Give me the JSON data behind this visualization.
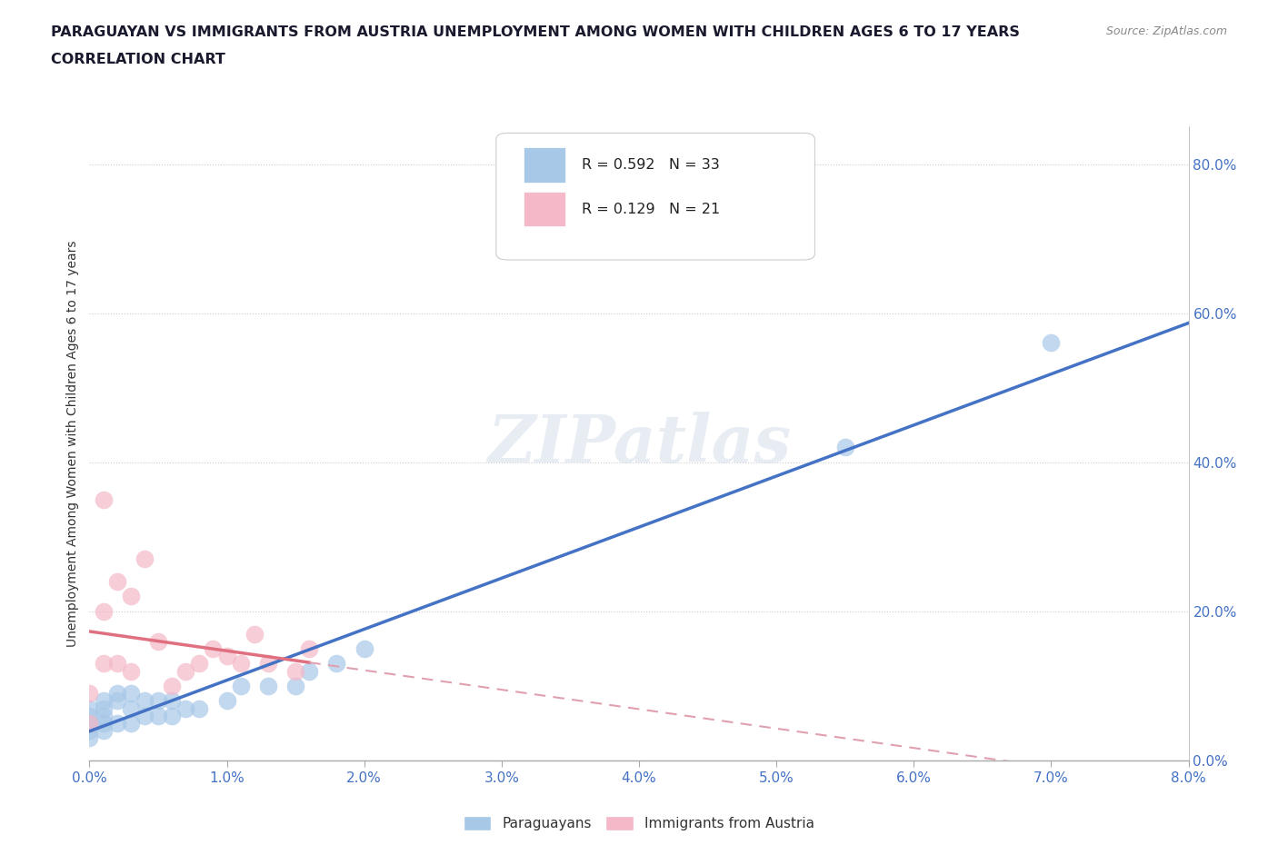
{
  "title_line1": "PARAGUAYAN VS IMMIGRANTS FROM AUSTRIA UNEMPLOYMENT AMONG WOMEN WITH CHILDREN AGES 6 TO 17 YEARS",
  "title_line2": "CORRELATION CHART",
  "source": "Source: ZipAtlas.com",
  "ylabel_label": "Unemployment Among Women with Children Ages 6 to 17 years",
  "xlim": [
    0.0,
    0.08
  ],
  "ylim": [
    0.0,
    0.85
  ],
  "paraguayan_R": 0.592,
  "paraguayan_N": 33,
  "austria_R": 0.129,
  "austria_N": 21,
  "paraguayan_color": "#a8c8e8",
  "austria_color": "#f4b8c8",
  "paraguayan_line_color": "#4472C4",
  "austria_line_solid_color": "#e07080",
  "austria_line_dash_color": "#e0a0b0",
  "legend_label_1": "Paraguayans",
  "legend_label_2": "Immigrants from Austria",
  "paraguayan_x": [
    0.0,
    0.0,
    0.0,
    0.0,
    0.0,
    0.001,
    0.001,
    0.001,
    0.001,
    0.001,
    0.002,
    0.002,
    0.002,
    0.003,
    0.003,
    0.003,
    0.004,
    0.004,
    0.005,
    0.005,
    0.006,
    0.006,
    0.007,
    0.008,
    0.01,
    0.011,
    0.013,
    0.015,
    0.016,
    0.018,
    0.02,
    0.055,
    0.07
  ],
  "paraguayan_y": [
    0.03,
    0.04,
    0.05,
    0.06,
    0.07,
    0.04,
    0.05,
    0.06,
    0.07,
    0.08,
    0.05,
    0.08,
    0.09,
    0.05,
    0.07,
    0.09,
    0.06,
    0.08,
    0.06,
    0.08,
    0.06,
    0.08,
    0.07,
    0.07,
    0.08,
    0.1,
    0.1,
    0.1,
    0.12,
    0.13,
    0.15,
    0.42,
    0.56
  ],
  "austria_x": [
    0.0,
    0.0,
    0.001,
    0.001,
    0.001,
    0.002,
    0.002,
    0.003,
    0.003,
    0.004,
    0.005,
    0.006,
    0.007,
    0.008,
    0.009,
    0.01,
    0.011,
    0.012,
    0.013,
    0.015,
    0.016
  ],
  "austria_y": [
    0.05,
    0.09,
    0.13,
    0.2,
    0.35,
    0.13,
    0.24,
    0.12,
    0.22,
    0.27,
    0.16,
    0.1,
    0.12,
    0.13,
    0.15,
    0.14,
    0.13,
    0.17,
    0.13,
    0.12,
    0.15
  ],
  "watermark": "ZIPatlas",
  "grid_color": "#cccccc",
  "background_color": "#ffffff",
  "tick_color": "#4472C4",
  "title_color": "#1a1a2e",
  "ylabel_color": "#333333"
}
